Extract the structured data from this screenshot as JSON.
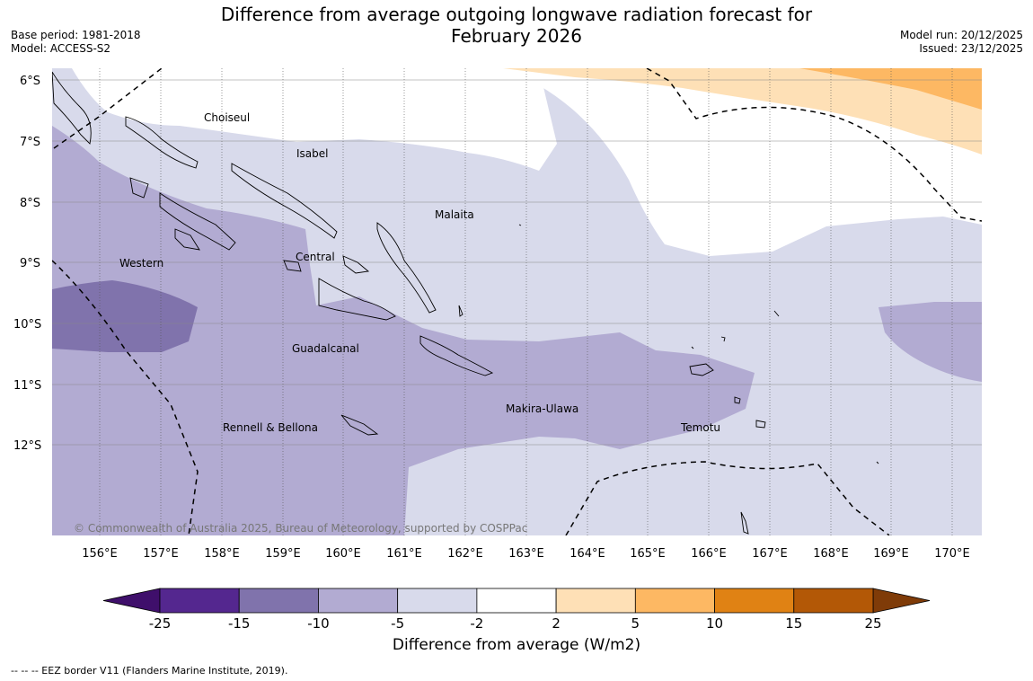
{
  "title_line1": "Difference from average outgoing longwave radiation forecast for",
  "title_line2": "February 2026",
  "base_period": "Base period: 1981-2018",
  "model": "Model: ACCESS-S2",
  "model_run": "Model run: 20/12/2025",
  "issued": "Issued: 23/12/2025",
  "copyright": "© Commonwealth of Australia 2025, Bureau of Meteorology, supported by COSPPac",
  "lat_labels": [
    "6°S",
    "7°S",
    "8°S",
    "9°S",
    "10°S",
    "11°S",
    "12°S"
  ],
  "lon_labels": [
    "156°E",
    "157°E",
    "158°E",
    "159°E",
    "160°E",
    "161°E",
    "162°E",
    "163°E",
    "164°E",
    "165°E",
    "166°E",
    "167°E",
    "168°E",
    "169°E",
    "170°E"
  ],
  "regions": [
    "Choiseul",
    "Isabel",
    "Malaita",
    "Western",
    "Central",
    "Guadalcanal",
    "Makira-Ulawa",
    "Rennell & Bellona",
    "Temotu"
  ],
  "colorbar": {
    "title": "Difference from average (W/m2)",
    "tick_labels": [
      "-25",
      "-15",
      "-10",
      "-5",
      "-2",
      "2",
      "5",
      "10",
      "15",
      "25"
    ],
    "colors": [
      "#3f0f6b",
      "#54278f",
      "#8073ac",
      "#b2abd2",
      "#d8daeb",
      "#ffffff",
      "#fee0b6",
      "#fdb863",
      "#e08214",
      "#b35806",
      "#7f3b08"
    ]
  },
  "eez_note": "--  --  -- EEZ border V11 (Flanders Marine Institute, 2019)."
}
